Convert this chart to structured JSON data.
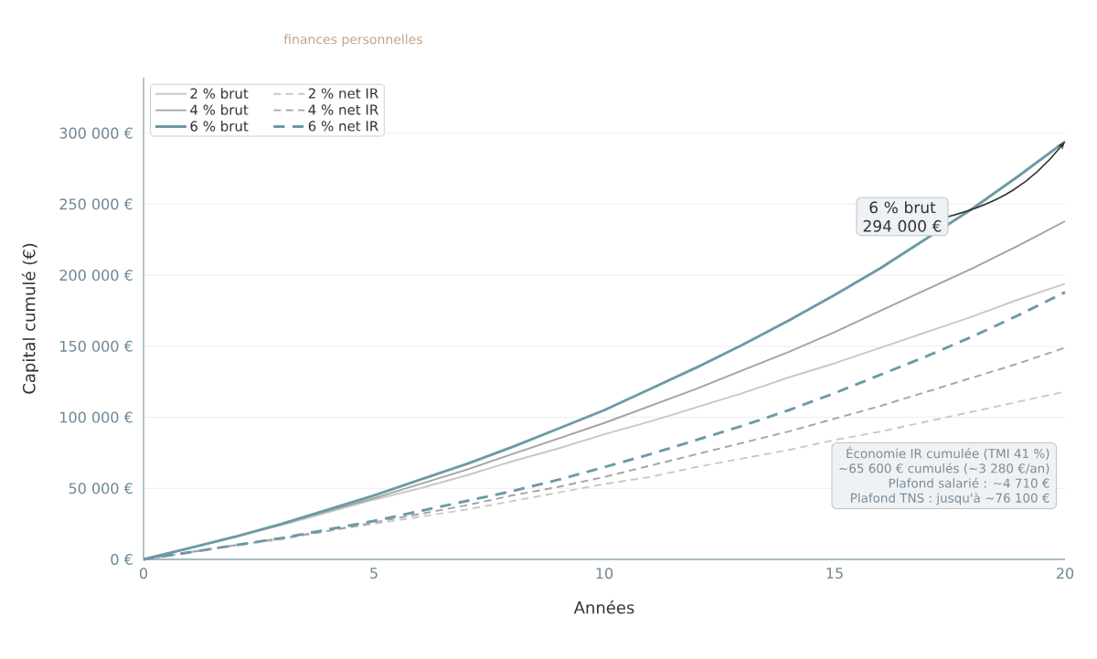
{
  "chart_data": {
    "type": "line",
    "title": "finances personnelles",
    "xlabel": "Années",
    "ylabel": "Capital cumulé (€)",
    "x": [
      0,
      1,
      2,
      3,
      4,
      5,
      6,
      7,
      8,
      9,
      10,
      11,
      12,
      13,
      14,
      15,
      16,
      17,
      18,
      19,
      20
    ],
    "series": [
      {
        "name": "2 % brut",
        "color": "#c8c8c8",
        "line_style": "solid",
        "values": [
          0,
          8000,
          16000,
          24000,
          33000,
          42000,
          50000,
          59000,
          69000,
          78000,
          88000,
          97000,
          107000,
          117000,
          128000,
          138000,
          149000,
          160000,
          171000,
          183000,
          194000
        ]
      },
      {
        "name": "2 % net IR",
        "color": "#c8c8c8",
        "line_style": "dashed",
        "values": [
          0,
          5000,
          10000,
          14000,
          20000,
          25000,
          30000,
          35000,
          41000,
          47000,
          53000,
          58000,
          65000,
          71000,
          77000,
          84000,
          90000,
          97000,
          104000,
          111000,
          118000
        ]
      },
      {
        "name": "4 % brut",
        "color": "#a3a3a3",
        "line_style": "solid",
        "values": [
          0,
          8000,
          16000,
          25000,
          34000,
          43000,
          53000,
          63000,
          74000,
          85000,
          96000,
          108000,
          120000,
          133000,
          146000,
          160000,
          175000,
          190000,
          205000,
          221000,
          238000
        ]
      },
      {
        "name": "4 % net IR",
        "color": "#a3a3a3",
        "line_style": "dashed",
        "values": [
          0,
          5000,
          10000,
          15000,
          20000,
          26000,
          32000,
          38000,
          45000,
          51000,
          58000,
          66000,
          74000,
          82000,
          90000,
          99000,
          108000,
          118000,
          128000,
          138000,
          149000
        ]
      },
      {
        "name": "6 % brut",
        "color": "#6b9aa7",
        "line_style": "solid",
        "values": [
          0,
          8000,
          16000,
          25000,
          35000,
          45000,
          56000,
          67000,
          79000,
          92000,
          105000,
          120000,
          135000,
          151000,
          168000,
          186000,
          205000,
          226000,
          247000,
          270000,
          294000
        ]
      },
      {
        "name": "6 % net IR",
        "color": "#6b9aa7",
        "line_style": "dashed",
        "values": [
          0,
          5000,
          10000,
          15000,
          21000,
          27000,
          34000,
          41000,
          48000,
          56000,
          65000,
          74000,
          84000,
          94000,
          105000,
          117000,
          130000,
          143000,
          157000,
          172000,
          188000
        ]
      }
    ],
    "xlim": [
      0,
      20
    ],
    "ylim": [
      0,
      339000
    ],
    "xticks": [
      0,
      5,
      10,
      15,
      20
    ],
    "yticks": [
      {
        "value": 0,
        "label": "0 €"
      },
      {
        "value": 50000,
        "label": "50 000 €"
      },
      {
        "value": 100000,
        "label": "100 000 €"
      },
      {
        "value": 150000,
        "label": "150 000 €"
      },
      {
        "value": 200000,
        "label": "200 000 €"
      },
      {
        "value": 250000,
        "label": "250 000 €"
      },
      {
        "value": 300000,
        "label": "300 000 €"
      }
    ],
    "grid": "y",
    "legend": "top left",
    "annotations": [
      {
        "text": "6 % brut 294 000 €",
        "x": 20,
        "y": 294000
      },
      "Économie IR cumulée (TMI 41 %)",
      "~65 600 € cumulés (~3 280 €/an)",
      "Plafond salarié : ~4 710 €",
      "Plafond TNS : jusqu'à ~76 100 €"
    ]
  }
}
